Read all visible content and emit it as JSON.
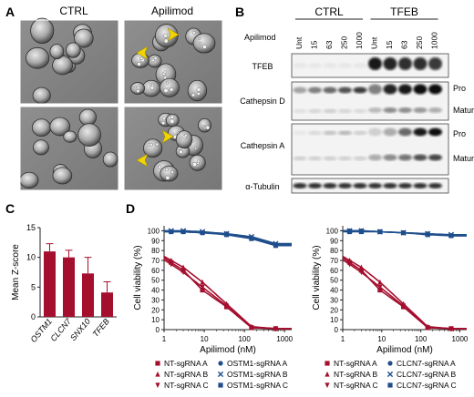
{
  "panels": {
    "A": {
      "label": "A",
      "col_titles": [
        "CTRL",
        "Apilimod"
      ]
    },
    "B": {
      "label": "B",
      "groups": [
        "CTRL",
        "TFEB"
      ],
      "row_title": "Apilimod",
      "lanes": [
        "Unt",
        "15",
        "63",
        "250",
        "1000",
        "Unt",
        "15",
        "63",
        "250",
        "1000"
      ],
      "blots": [
        "TFEB",
        "Cathepsin D",
        "Cathepsin A",
        "α-Tubulin"
      ],
      "band_labels": {
        "pro": "Pro",
        "mature": "Mature"
      }
    },
    "C": {
      "label": "C"
    },
    "D": {
      "label": "D"
    }
  },
  "chart_data": [
    {
      "type": "bar",
      "panel": "C",
      "categories": [
        "OSTM1",
        "CLCN7",
        "SNX10",
        "TFEB"
      ],
      "values": [
        11.0,
        10.0,
        7.3,
        4.1
      ],
      "errors": [
        1.3,
        1.2,
        2.7,
        1.8
      ],
      "ylabel": "Mean Z-score",
      "ylim": [
        0,
        15
      ],
      "yticks": [
        0,
        5,
        10,
        15
      ],
      "color": "#a50f2e"
    },
    {
      "type": "line",
      "panel": "D-left",
      "xlabel": "Apilimod (nM)",
      "ylabel": "Cell viability (%)",
      "xscale": "log",
      "xlim": [
        1,
        1500
      ],
      "xticks": [
        "1",
        "10",
        "100",
        "1000"
      ],
      "ylim": [
        0,
        105
      ],
      "yticks": [
        0,
        10,
        20,
        30,
        40,
        50,
        60,
        70,
        80,
        90,
        100
      ],
      "series": [
        {
          "name": "NT-sgRNA A",
          "color": "#a50f2e",
          "marker": "square",
          "x": [
            1.5,
            3,
            9,
            36,
            150,
            600
          ],
          "y": [
            68,
            60,
            40,
            23,
            2,
            1
          ]
        },
        {
          "name": "NT-sgRNA B",
          "color": "#a50f2e",
          "marker": "triangle-up",
          "x": [
            1.5,
            3,
            9,
            36,
            150,
            600
          ],
          "y": [
            70,
            63,
            48,
            26,
            3,
            1
          ]
        },
        {
          "name": "NT-sgRNA C",
          "color": "#a50f2e",
          "marker": "triangle-down",
          "x": [
            1.5,
            3,
            9,
            36,
            150,
            600
          ],
          "y": [
            66,
            58,
            43,
            24,
            2,
            1
          ]
        },
        {
          "name": "OSTM1-sgRNA A",
          "color": "#1f4e8c",
          "marker": "circle",
          "x": [
            1.5,
            3,
            9,
            36,
            150,
            600
          ],
          "y": [
            99,
            99,
            98,
            97,
            93,
            86
          ]
        },
        {
          "name": "OSTM1-sgRNA B",
          "color": "#1f4e8c",
          "marker": "x",
          "x": [
            1.5,
            3,
            9,
            36,
            150,
            600
          ],
          "y": [
            100,
            100,
            99,
            97,
            94,
            87
          ]
        },
        {
          "name": "OSTM1-sgRNA C",
          "color": "#1f4e8c",
          "marker": "square",
          "x": [
            1.5,
            3,
            9,
            36,
            150,
            600
          ],
          "y": [
            99,
            99,
            98,
            96,
            92,
            85
          ]
        }
      ]
    },
    {
      "type": "line",
      "panel": "D-right",
      "xlabel": "Apilimod (nM)",
      "ylabel": "Cell viability (%)",
      "xscale": "log",
      "xlim": [
        1,
        1500
      ],
      "xticks": [
        "1",
        "10",
        "100",
        "1000"
      ],
      "ylim": [
        0,
        105
      ],
      "yticks": [
        0,
        10,
        20,
        30,
        40,
        50,
        60,
        70,
        80,
        90,
        100
      ],
      "series": [
        {
          "name": "NT-sgRNA A",
          "color": "#a50f2e",
          "marker": "square",
          "x": [
            1.5,
            3,
            9,
            36,
            150,
            600
          ],
          "y": [
            68,
            60,
            40,
            23,
            2,
            1
          ]
        },
        {
          "name": "NT-sgRNA B",
          "color": "#a50f2e",
          "marker": "triangle-up",
          "x": [
            1.5,
            3,
            9,
            36,
            150,
            600
          ],
          "y": [
            70,
            63,
            48,
            26,
            3,
            1
          ]
        },
        {
          "name": "NT-sgRNA C",
          "color": "#a50f2e",
          "marker": "triangle-down",
          "x": [
            1.5,
            3,
            9,
            36,
            150,
            600
          ],
          "y": [
            66,
            58,
            43,
            24,
            2,
            1
          ]
        },
        {
          "name": "CLCN7-sgRNA A",
          "color": "#1f4e8c",
          "marker": "circle",
          "x": [
            1.5,
            3,
            9,
            36,
            150,
            600
          ],
          "y": [
            100,
            100,
            99,
            98,
            97,
            95
          ]
        },
        {
          "name": "CLCN7-sgRNA B",
          "color": "#1f4e8c",
          "marker": "x",
          "x": [
            1.5,
            3,
            9,
            36,
            150,
            600
          ],
          "y": [
            100,
            100,
            99,
            98,
            97,
            96
          ]
        },
        {
          "name": "CLCN7-sgRNA C",
          "color": "#1f4e8c",
          "marker": "square",
          "x": [
            1.5,
            3,
            9,
            36,
            150,
            600
          ],
          "y": [
            99,
            99,
            99,
            98,
            96,
            95
          ]
        }
      ]
    }
  ]
}
